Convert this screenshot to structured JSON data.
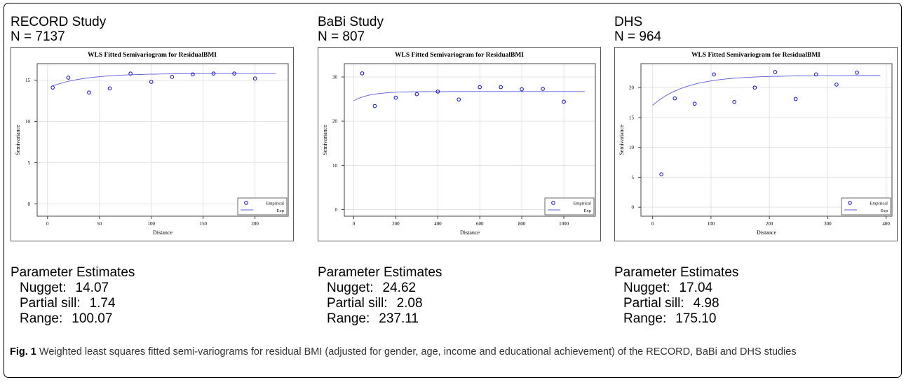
{
  "panels": [
    {
      "study": "RECORD Study",
      "n_label": "N = 7137",
      "params_heading": "Parameter Estimates",
      "params": [
        {
          "label": "Nugget:",
          "value": "14.07"
        },
        {
          "label": "Partial sill:",
          "value": "1.74"
        },
        {
          "label": "Range:",
          "value": "100.07"
        }
      ]
    },
    {
      "study": "BaBi Study",
      "n_label": "N = 807",
      "params_heading": "Parameter Estimates",
      "params": [
        {
          "label": "Nugget:",
          "value": "24.62"
        },
        {
          "label": "Partial sill:",
          "value": "2.08"
        },
        {
          "label": "Range:",
          "value": "237.11"
        }
      ]
    },
    {
      "study": "DHS",
      "n_label": "N = 964",
      "params_heading": "Parameter Estimates",
      "params": [
        {
          "label": "Nugget:",
          "value": "17.04"
        },
        {
          "label": "Partial sill:",
          "value": "4.98"
        },
        {
          "label": "Range:",
          "value": "175.10"
        }
      ]
    }
  ],
  "chart_data": [
    {
      "type": "scatter",
      "title": "WLS Fitted Semivariogram for ResidualBMI",
      "xlabel": "Distance",
      "ylabel": "Semivariance",
      "xlim": [
        -10,
        232
      ],
      "ylim": [
        -1.5,
        17
      ],
      "xticks": [
        0,
        50,
        100,
        150,
        200
      ],
      "yticks": [
        0,
        5,
        10,
        15
      ],
      "grid": true,
      "legend_position": "bottom-right",
      "series": [
        {
          "name": "Empirical",
          "marker": "circle",
          "color": "#1f1fcc",
          "x": [
            5,
            20,
            40,
            60,
            80,
            100,
            120,
            140,
            160,
            180,
            200
          ],
          "y": [
            14.1,
            15.3,
            13.5,
            14.0,
            15.8,
            14.8,
            15.4,
            15.7,
            15.8,
            15.8,
            15.2
          ]
        },
        {
          "name": "Exp",
          "line": true,
          "color": "#5a5ae0",
          "model": {
            "nugget": 14.07,
            "partial_sill": 1.74,
            "range": 100.07
          },
          "x_range": [
            5,
            220
          ]
        }
      ]
    },
    {
      "type": "scatter",
      "title": "WLS Fitted Semivariogram for ResidualBMI",
      "xlabel": "Distance",
      "ylabel": "Semivariance",
      "xlim": [
        -45,
        1150
      ],
      "ylim": [
        -1.5,
        33
      ],
      "xticks": [
        0,
        200,
        400,
        600,
        800,
        1000
      ],
      "yticks": [
        0,
        10,
        20,
        30
      ],
      "grid": true,
      "legend_position": "bottom-right",
      "series": [
        {
          "name": "Empirical",
          "marker": "circle",
          "color": "#1f1fcc",
          "x": [
            40,
            100,
            200,
            300,
            400,
            500,
            600,
            700,
            800,
            900,
            1000
          ],
          "y": [
            30.8,
            23.4,
            25.3,
            26.1,
            26.7,
            24.9,
            27.7,
            27.7,
            27.2,
            27.3,
            24.4
          ]
        },
        {
          "name": "Exp",
          "line": true,
          "color": "#5a5ae0",
          "model": {
            "nugget": 24.62,
            "partial_sill": 2.08,
            "range": 237.11
          },
          "x_range": [
            0,
            1100
          ]
        }
      ]
    },
    {
      "type": "scatter",
      "title": "WLS Fitted Semivariogram for ResidualBMI",
      "xlabel": "Distance",
      "ylabel": "Semivariance",
      "xlim": [
        -20,
        410
      ],
      "ylim": [
        -1.5,
        24
      ],
      "xticks": [
        0,
        100,
        200,
        300,
        400
      ],
      "yticks": [
        0,
        5,
        10,
        15,
        20
      ],
      "grid": true,
      "legend_position": "bottom-right",
      "series": [
        {
          "name": "Empirical",
          "marker": "circle",
          "color": "#1f1fcc",
          "x": [
            15,
            38,
            72,
            105,
            140,
            175,
            210,
            245,
            280,
            315,
            350
          ],
          "y": [
            5.5,
            18.2,
            17.3,
            22.2,
            17.6,
            20.0,
            22.6,
            18.1,
            22.2,
            20.5,
            22.5
          ]
        },
        {
          "name": "Exp",
          "line": true,
          "color": "#5a5ae0",
          "model": {
            "nugget": 17.04,
            "partial_sill": 4.98,
            "range": 175.1
          },
          "x_range": [
            0,
            390
          ]
        }
      ]
    }
  ],
  "caption": {
    "fig_label": "Fig. 1",
    "text": " Weighted least squares fitted semi-variograms for residual BMI (adjusted for gender, age, income and educational achievement) of the RECORD, BaBi and DHS studies"
  }
}
